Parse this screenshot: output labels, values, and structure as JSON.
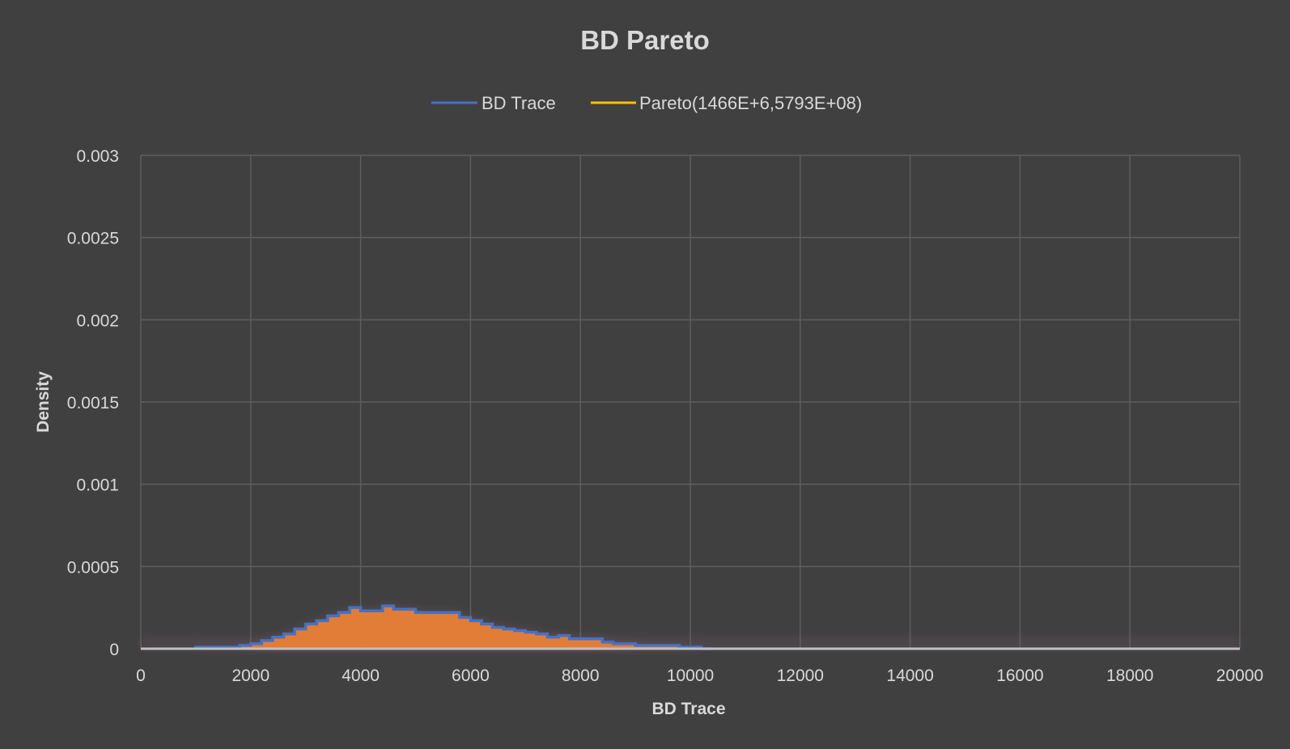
{
  "chart_data": {
    "type": "area",
    "title": "BD Pareto",
    "xlabel": "BD Trace",
    "ylabel": "Density",
    "xlim": [
      0,
      20000
    ],
    "ylim": [
      0,
      0.003
    ],
    "x_ticks": [
      "0",
      "2000",
      "4000",
      "6000",
      "8000",
      "10000",
      "12000",
      "14000",
      "16000",
      "18000",
      "20000"
    ],
    "y_ticks": [
      "0",
      "0.0005",
      "0.001",
      "0.0015",
      "0.002",
      "0.0025",
      "0.003"
    ],
    "grid": true,
    "legend_position": "top",
    "series": [
      {
        "name": "BD Trace",
        "color": "#4472c4",
        "kind": "step",
        "x": [
          1000,
          1200,
          1400,
          1600,
          1800,
          2000,
          2200,
          2400,
          2600,
          2800,
          3000,
          3200,
          3400,
          3600,
          3800,
          4000,
          4200,
          4400,
          4600,
          4800,
          5000,
          5200,
          5400,
          5600,
          5800,
          6000,
          6200,
          6400,
          6600,
          6800,
          7000,
          7200,
          7400,
          7600,
          7800,
          8000,
          8200,
          8400,
          8600,
          8800,
          9000,
          9200,
          9400,
          9600,
          9800,
          10000,
          10200
        ],
        "values": [
          1e-05,
          1e-05,
          1e-05,
          1e-05,
          2e-05,
          3e-05,
          5e-05,
          7e-05,
          9e-05,
          0.00012,
          0.00015,
          0.00017,
          0.0002,
          0.00022,
          0.00025,
          0.00023,
          0.00023,
          0.00026,
          0.00024,
          0.00024,
          0.00022,
          0.00022,
          0.00022,
          0.00022,
          0.00019,
          0.00017,
          0.00015,
          0.00013,
          0.00012,
          0.00011,
          0.0001,
          9e-05,
          7e-05,
          8e-05,
          6e-05,
          6e-05,
          6e-05,
          4e-05,
          3e-05,
          3e-05,
          2e-05,
          2e-05,
          2e-05,
          2e-05,
          1e-05,
          1e-05,
          0.0
        ],
        "fill": "#e97f36"
      },
      {
        "name": "Pareto(1466E+6,5793E+08)",
        "color": "#ffc000",
        "values": []
      }
    ]
  }
}
